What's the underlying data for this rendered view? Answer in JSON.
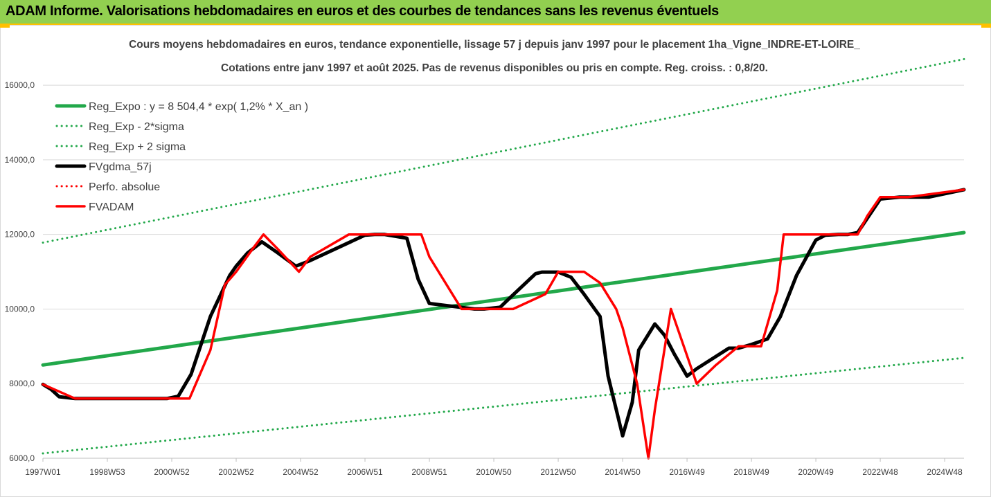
{
  "header": {
    "title": "ADAM Informe. Valorisations hebdomadaires en euros et des courbes de tendances sans les revenus éventuels"
  },
  "chart_data": {
    "type": "line",
    "title_line1": "Cours moyens hebdomadaires en euros, tendance exponentielle, lissage 57 j depuis janv 1997 pour le placement 1ha_Vigne_INDRE-ET-LOIRE_",
    "title_line2": "Cotations entre janv 1997 et août 2025.  Pas de revenus disponibles ou pris en compte. Reg. croiss. : 0,8/20.",
    "xlabel": "",
    "ylabel": "",
    "ylim": [
      6000,
      16800
    ],
    "xlim": [
      1997.0,
      2025.6
    ],
    "grid": true,
    "legend_position": "top-left",
    "y_ticks": [
      {
        "value": 6000,
        "label": "6000,0"
      },
      {
        "value": 8000,
        "label": "8000,0"
      },
      {
        "value": 10000,
        "label": "10000,0"
      },
      {
        "value": 12000,
        "label": "12000,0"
      },
      {
        "value": 14000,
        "label": "14000,0"
      },
      {
        "value": 16000,
        "label": "16000,0"
      }
    ],
    "x_ticks": [
      {
        "x": 1997.0,
        "label": "1997W01"
      },
      {
        "x": 1999.0,
        "label": "1998W53"
      },
      {
        "x": 2001.0,
        "label": "2000W52"
      },
      {
        "x": 2003.0,
        "label": "2002W52"
      },
      {
        "x": 2005.0,
        "label": "2004W52"
      },
      {
        "x": 2007.0,
        "label": "2006W51"
      },
      {
        "x": 2009.0,
        "label": "2008W51"
      },
      {
        "x": 2011.0,
        "label": "2010W50"
      },
      {
        "x": 2013.0,
        "label": "2012W50"
      },
      {
        "x": 2015.0,
        "label": "2014W50"
      },
      {
        "x": 2017.0,
        "label": "2016W49"
      },
      {
        "x": 2019.0,
        "label": "2018W49"
      },
      {
        "x": 2021.0,
        "label": "2020W49"
      },
      {
        "x": 2023.0,
        "label": "2022W48"
      },
      {
        "x": 2025.0,
        "label": "2024W48"
      }
    ],
    "series": [
      {
        "name": "Reg_Expo : y = 8 504,4 * exp( 1,2% *  X_an )",
        "color": "#22a84a",
        "style": "solid",
        "width": 5,
        "x": [
          1997.0,
          2025.6
        ],
        "y": [
          8500,
          12050
        ]
      },
      {
        "name": "Reg_Exp - 2*sigma",
        "color": "#22a84a",
        "style": "dotted",
        "width": 3,
        "x": [
          1997.0,
          2025.6
        ],
        "y": [
          6130,
          8690
        ]
      },
      {
        "name": "Reg_Exp + 2 sigma",
        "color": "#22a84a",
        "style": "dotted",
        "width": 3,
        "x": [
          1997.0,
          2025.6
        ],
        "y": [
          11780,
          16700
        ]
      },
      {
        "name": "FVgdma_57j",
        "color": "#000000",
        "style": "solid",
        "width": 5,
        "x": [
          1997.0,
          1997.25,
          1997.5,
          1998.0,
          2000.0,
          2000.5,
          2000.85,
          2001.2,
          2001.6,
          2002.2,
          2002.8,
          2003.0,
          2003.35,
          2003.8,
          2004.3,
          2004.85,
          2005.3,
          2007.0,
          2007.3,
          2007.6,
          2008.3,
          2008.65,
          2009.0,
          2010.4,
          2010.7,
          2011.2,
          2011.5,
          2012.3,
          2012.5,
          2013.0,
          2013.4,
          2013.8,
          2014.3,
          2014.55,
          2015.0,
          2015.3,
          2015.5,
          2016.0,
          2016.3,
          2016.6,
          2017.0,
          2017.3,
          2018.3,
          2018.6,
          2019.0,
          2019.5,
          2019.9,
          2020.4,
          2021.0,
          2021.3,
          2021.7,
          2022.0,
          2022.3,
          2022.65,
          2023.0,
          2023.6,
          2024.5,
          2025.6
        ],
        "y": [
          7980,
          7850,
          7650,
          7600,
          7600,
          7600,
          7600,
          7660,
          8250,
          9800,
          10900,
          11150,
          11500,
          11800,
          11500,
          11150,
          11300,
          11980,
          12000,
          12000,
          11900,
          10800,
          10150,
          10000,
          10000,
          10050,
          10300,
          10950,
          10990,
          10990,
          10850,
          10400,
          9800,
          8200,
          6600,
          7500,
          8900,
          9600,
          9300,
          8800,
          8200,
          8400,
          8950,
          8950,
          9050,
          9200,
          9800,
          10900,
          11850,
          11980,
          12000,
          12000,
          12050,
          12500,
          12950,
          13000,
          13000,
          13200
        ]
      },
      {
        "name": "Perfo. absolue",
        "color": "#ff0000",
        "style": "dotted",
        "width": 3,
        "x": [],
        "y": []
      },
      {
        "name": "FVADAM",
        "color": "#ff0000",
        "style": "solid",
        "width": 3.5,
        "x": [
          1997.0,
          1998.0,
          2000.0,
          2001.1,
          2001.55,
          2002.2,
          2002.65,
          2003.0,
          2003.5,
          2003.85,
          2004.3,
          2004.95,
          2005.3,
          2006.5,
          2007.0,
          2007.7,
          2008.0,
          2008.75,
          2009.0,
          2010.0,
          2010.35,
          2010.7,
          2011.2,
          2011.6,
          2012.6,
          2013.0,
          2013.4,
          2013.8,
          2014.3,
          2014.8,
          2015.0,
          2015.45,
          2015.8,
          2016.0,
          2016.5,
          2016.9,
          2017.3,
          2017.9,
          2018.6,
          2019.0,
          2019.3,
          2019.8,
          2020.0,
          2020.8,
          2021.6,
          2021.9,
          2022.3,
          2022.6,
          2023.0,
          2023.85,
          2025.6
        ],
        "y": [
          7980,
          7600,
          7600,
          7600,
          7600,
          8900,
          10650,
          11000,
          11600,
          12000,
          11600,
          11000,
          11400,
          12000,
          12000,
          12000,
          12000,
          12000,
          11400,
          10000,
          10000,
          10000,
          10000,
          10000,
          10400,
          11000,
          11000,
          11000,
          10700,
          10000,
          9500,
          8000,
          6000,
          7300,
          10000,
          9000,
          8000,
          8500,
          9000,
          9000,
          9000,
          10500,
          12000,
          12000,
          12000,
          12000,
          12000,
          12500,
          13000,
          13000,
          13200
        ]
      }
    ]
  }
}
